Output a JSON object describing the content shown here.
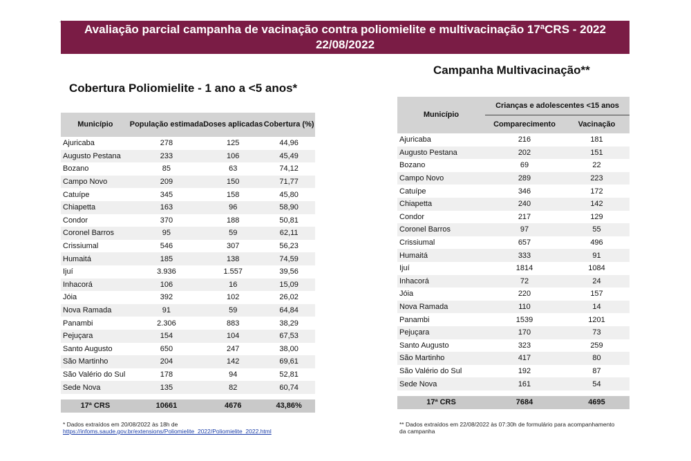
{
  "header": {
    "title_line1": "Avaliação parcial campanha de vacinação contra poliomielite e multivacinação 17ªCRS - 2022",
    "title_line2": "22/08/2022"
  },
  "left": {
    "title": "Cobertura Poliomielite - 1 ano a <5 anos*",
    "columns": [
      "Município",
      "População estimada",
      "Doses aplicadas",
      "Cobertura (%)"
    ],
    "rows": [
      [
        "Ajuricaba",
        "278",
        "125",
        "44,96"
      ],
      [
        "Augusto Pestana",
        "233",
        "106",
        "45,49"
      ],
      [
        "Bozano",
        "85",
        "63",
        "74,12"
      ],
      [
        "Campo Novo",
        "209",
        "150",
        "71,77"
      ],
      [
        "Catuípe",
        "345",
        "158",
        "45,80"
      ],
      [
        "Chiapetta",
        "163",
        "96",
        "58,90"
      ],
      [
        "Condor",
        "370",
        "188",
        "50,81"
      ],
      [
        "Coronel Barros",
        "95",
        "59",
        "62,11"
      ],
      [
        "Crissiumal",
        "546",
        "307",
        "56,23"
      ],
      [
        "Humaitá",
        "185",
        "138",
        "74,59"
      ],
      [
        "Ijuí",
        "3.936",
        "1.557",
        "39,56"
      ],
      [
        "Inhacorá",
        "106",
        "16",
        "15,09"
      ],
      [
        "Jóia",
        "392",
        "102",
        "26,02"
      ],
      [
        "Nova Ramada",
        "91",
        "59",
        "64,84"
      ],
      [
        "Panambi",
        "2.306",
        "883",
        "38,29"
      ],
      [
        "Pejuçara",
        "154",
        "104",
        "67,53"
      ],
      [
        "Santo Augusto",
        "650",
        "247",
        "38,00"
      ],
      [
        "São Martinho",
        "204",
        "142",
        "69,61"
      ],
      [
        "São Valério do Sul",
        "178",
        "94",
        "52,81"
      ],
      [
        "Sede Nova",
        "135",
        "82",
        "60,74"
      ]
    ],
    "total": [
      "17ª CRS",
      "10661",
      "4676",
      "43,86%"
    ],
    "footnote_line1": "* Dados extraídos em 20/08/2022 às 18h de",
    "footnote_link": "https://infoms.saude.gov.br/extensions/Poliomielite_2022/Poliomielite_2022.html"
  },
  "right": {
    "title": "Campanha Multivacinação**",
    "col_municipio": "Município",
    "group_header": "Crianças e adolescentes <15 anos",
    "columns": [
      "Comparecimento",
      "Vacinação"
    ],
    "rows": [
      [
        "Ajuricaba",
        "216",
        "181"
      ],
      [
        "Augusto Pestana",
        "202",
        "151"
      ],
      [
        "Bozano",
        "69",
        "22"
      ],
      [
        "Campo Novo",
        "289",
        "223"
      ],
      [
        "Catuípe",
        "346",
        "172"
      ],
      [
        "Chiapetta",
        "240",
        "142"
      ],
      [
        "Condor",
        "217",
        "129"
      ],
      [
        "Coronel Barros",
        "97",
        "55"
      ],
      [
        "Crissiumal",
        "657",
        "496"
      ],
      [
        "Humaitá",
        "333",
        "91"
      ],
      [
        "Ijuí",
        "1814",
        "1084"
      ],
      [
        "Inhacorá",
        "72",
        "24"
      ],
      [
        "Jóia",
        "220",
        "157"
      ],
      [
        "Nova Ramada",
        "110",
        "14"
      ],
      [
        "Panambi",
        "1539",
        "1201"
      ],
      [
        "Pejuçara",
        "170",
        "73"
      ],
      [
        "Santo Augusto",
        "323",
        "259"
      ],
      [
        "São Martinho",
        "417",
        "80"
      ],
      [
        "São Valério do Sul",
        "192",
        "87"
      ],
      [
        "Sede Nova",
        "161",
        "54"
      ]
    ],
    "total": [
      "17ª CRS",
      "7684",
      "4695"
    ],
    "footnote_line1": "** Dados extraídos em 22/08/2022 às 07:30h de formulário para acompanhamento",
    "footnote_line2": "da campanha"
  }
}
